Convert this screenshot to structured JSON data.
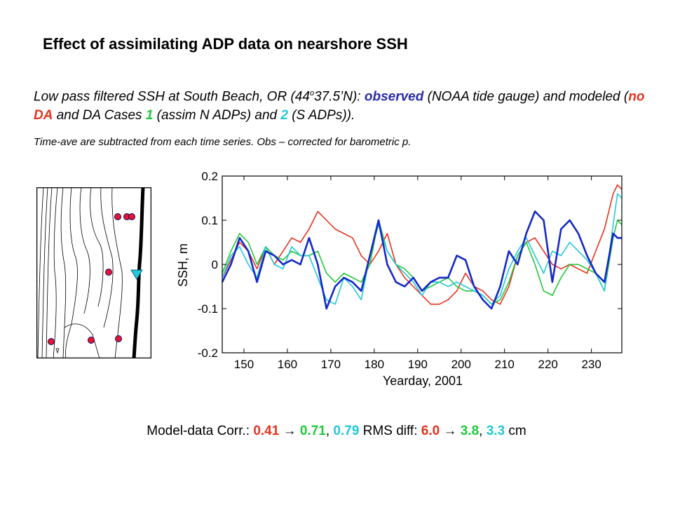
{
  "title": "Effect of assimilating ADP data on nearshore SSH",
  "description": {
    "p1": "Low pass filtered SSH at South Beach, OR (44",
    "deg": "o",
    "p2": "37.5’N): ",
    "observed": "observed",
    "p3": " (NOAA tide gauge) and modeled (",
    "no_da": "no DA",
    "p4": " and DA Cases ",
    "case1": "1",
    "p5": " (assim N ADPs) and ",
    "case2": "2",
    "p6": " (S ADPs))."
  },
  "note": "Time-ave are subtracted from each time series.  Obs – corrected for barometric p.",
  "stats": {
    "corr_label": "Model-data Corr.:",
    "corr_nda": "0.41",
    "arrow": "→",
    "corr_c1": "0.71",
    "sep": ",",
    "corr_c2": "0.79",
    "rms_label": "RMS diff:",
    "rms_nda": "6.0",
    "rms_c1": "3.8",
    "rms_c2": "3.3",
    "unit": "cm"
  },
  "colors": {
    "observed": "#1428c8",
    "no_da": "#e8321e",
    "case1": "#22c83a",
    "case2": "#22c8d8"
  },
  "chart_data": {
    "type": "line",
    "xlabel": "Yearday, 2001",
    "ylabel": "SSH, m",
    "xlim": [
      145,
      237
    ],
    "ylim": [
      -0.2,
      0.2
    ],
    "xticks": [
      150,
      160,
      170,
      180,
      190,
      200,
      210,
      220,
      230
    ],
    "yticks": [
      0.2,
      0.1,
      0,
      -0.1,
      -0.2
    ],
    "ytick_labels": [
      "0.2",
      "0.1",
      "0",
      "-0.1",
      "-0.2"
    ],
    "grid": false,
    "series": [
      {
        "key": "no_da",
        "x": [
          145,
          147,
          149,
          151,
          153,
          155,
          157,
          159,
          161,
          163,
          165,
          167,
          169,
          171,
          173,
          175,
          177,
          179,
          181,
          183,
          185,
          187,
          189,
          191,
          193,
          195,
          197,
          199,
          201,
          203,
          205,
          207,
          209,
          211,
          213,
          215,
          217,
          219,
          221,
          223,
          225,
          227,
          229,
          231,
          233,
          235,
          236,
          237
        ],
        "y": [
          -0.03,
          0.01,
          0.05,
          0.03,
          -0.01,
          0.04,
          0.0,
          0.03,
          0.06,
          0.05,
          0.08,
          0.12,
          0.1,
          0.08,
          0.07,
          0.06,
          0.02,
          0.0,
          0.03,
          0.07,
          0.0,
          -0.03,
          -0.05,
          -0.07,
          -0.09,
          -0.09,
          -0.08,
          -0.06,
          -0.02,
          -0.05,
          -0.06,
          -0.08,
          -0.09,
          -0.05,
          0.02,
          0.05,
          0.06,
          0.03,
          0.0,
          -0.01,
          0.0,
          -0.01,
          -0.02,
          0.03,
          0.08,
          0.16,
          0.18,
          0.17
        ]
      },
      {
        "key": "case1",
        "x": [
          145,
          147,
          149,
          151,
          153,
          155,
          157,
          159,
          161,
          163,
          165,
          167,
          169,
          171,
          173,
          175,
          177,
          179,
          181,
          183,
          185,
          187,
          189,
          191,
          193,
          195,
          197,
          199,
          201,
          203,
          205,
          207,
          209,
          211,
          213,
          215,
          217,
          219,
          221,
          223,
          225,
          227,
          229,
          231,
          233,
          235,
          236,
          237
        ],
        "y": [
          -0.02,
          0.03,
          0.07,
          0.05,
          0.0,
          0.04,
          0.02,
          0.01,
          0.03,
          0.02,
          0.02,
          0.03,
          -0.02,
          -0.04,
          -0.02,
          -0.03,
          -0.04,
          0.0,
          0.1,
          0.03,
          0.0,
          -0.01,
          -0.03,
          -0.06,
          -0.05,
          -0.04,
          -0.03,
          -0.05,
          -0.06,
          -0.06,
          -0.07,
          -0.09,
          -0.08,
          -0.04,
          0.02,
          0.05,
          0.0,
          -0.06,
          -0.07,
          -0.03,
          0.0,
          0.0,
          -0.01,
          -0.02,
          -0.06,
          0.06,
          0.1,
          0.09
        ]
      },
      {
        "key": "case2",
        "x": [
          145,
          147,
          149,
          151,
          153,
          155,
          157,
          159,
          161,
          163,
          165,
          167,
          169,
          171,
          173,
          175,
          177,
          179,
          181,
          183,
          185,
          187,
          189,
          191,
          193,
          195,
          197,
          199,
          201,
          203,
          205,
          207,
          209,
          211,
          213,
          215,
          217,
          219,
          221,
          223,
          225,
          227,
          229,
          231,
          233,
          235,
          236,
          237
        ],
        "y": [
          -0.03,
          0.02,
          0.04,
          0.0,
          -0.03,
          0.04,
          0.0,
          -0.01,
          0.04,
          0.02,
          0.02,
          -0.03,
          -0.08,
          -0.09,
          -0.03,
          -0.05,
          -0.08,
          0.02,
          0.09,
          0.03,
          0.0,
          -0.02,
          -0.04,
          -0.07,
          -0.04,
          -0.04,
          -0.05,
          -0.04,
          -0.05,
          -0.06,
          -0.07,
          -0.09,
          -0.07,
          -0.01,
          0.03,
          0.06,
          0.02,
          -0.02,
          0.03,
          0.02,
          0.05,
          0.03,
          0.01,
          -0.02,
          -0.06,
          0.09,
          0.16,
          0.15
        ]
      },
      {
        "key": "observed",
        "x": [
          145,
          147,
          149,
          151,
          153,
          155,
          157,
          159,
          161,
          163,
          165,
          167,
          169,
          171,
          173,
          175,
          177,
          179,
          181,
          183,
          185,
          187,
          189,
          191,
          193,
          195,
          197,
          199,
          201,
          203,
          205,
          207,
          209,
          211,
          213,
          215,
          217,
          219,
          221,
          223,
          225,
          227,
          229,
          231,
          233,
          235,
          236,
          237
        ],
        "y": [
          -0.04,
          0.0,
          0.06,
          0.03,
          -0.04,
          0.03,
          0.02,
          0.0,
          0.01,
          0.0,
          0.06,
          0.0,
          -0.1,
          -0.05,
          -0.03,
          -0.04,
          -0.06,
          0.02,
          0.1,
          0.0,
          -0.04,
          -0.05,
          -0.03,
          -0.06,
          -0.04,
          -0.03,
          -0.03,
          0.02,
          0.01,
          -0.05,
          -0.08,
          -0.1,
          -0.05,
          0.03,
          0.0,
          0.07,
          0.12,
          0.1,
          -0.04,
          0.08,
          0.1,
          0.07,
          0.02,
          -0.02,
          -0.04,
          0.07,
          0.06,
          0.06
        ]
      }
    ]
  }
}
